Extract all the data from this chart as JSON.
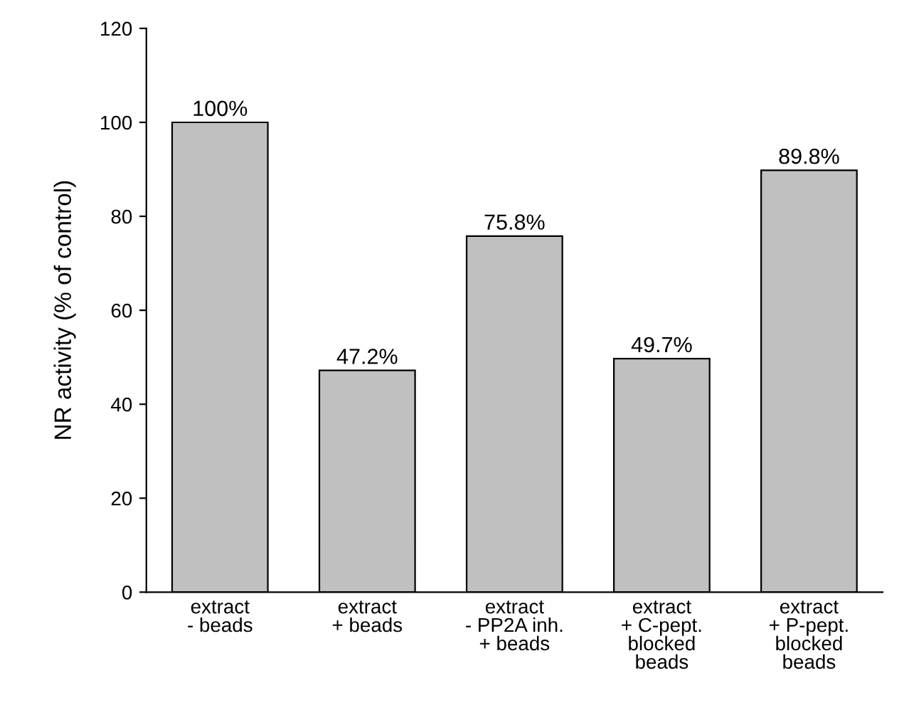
{
  "chart_data": {
    "type": "bar",
    "categories": [
      "extract\n- beads",
      "extract\n+ beads",
      "extract\n- PP2A inh.\n+ beads",
      "extract\n+ C-pept.\nblocked\nbeads",
      "extract\n+ P-pept.\nblocked\nbeads"
    ],
    "values": [
      100,
      47.2,
      75.8,
      49.7,
      89.8
    ],
    "value_labels": [
      "100%",
      "47.2%",
      "75.8%",
      "49.7%",
      "89.8%"
    ],
    "color": "#c0c0c0",
    "ylabel": "NR activity (% of control)",
    "ylim": [
      0,
      120
    ],
    "yticks": [
      0,
      20,
      40,
      60,
      80,
      100,
      120
    ],
    "grid": false
  }
}
